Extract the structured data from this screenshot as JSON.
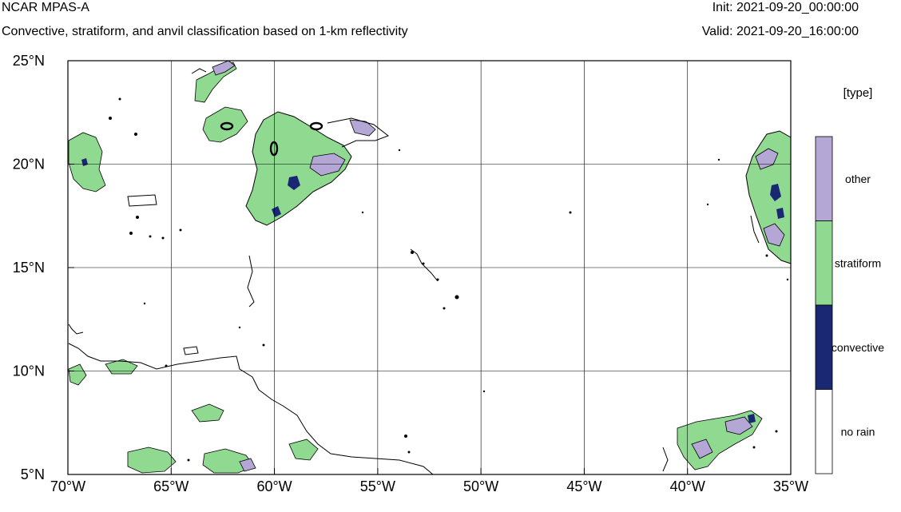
{
  "header": {
    "title": "NCAR MPAS-A",
    "subtitle": "Convective, stratiform, and anvil classification based on 1-km reflectivity",
    "init": "Init: 2021-09-20_00:00:00",
    "valid": "Valid: 2021-09-20_16:00:00"
  },
  "map": {
    "lon_range": [
      -70,
      -35
    ],
    "lat_range": [
      5,
      25
    ],
    "lon_ticks": [
      {
        "value": -70,
        "label": "70°W"
      },
      {
        "value": -65,
        "label": "65°W"
      },
      {
        "value": -60,
        "label": "60°W"
      },
      {
        "value": -55,
        "label": "55°W"
      },
      {
        "value": -50,
        "label": "50°W"
      },
      {
        "value": -45,
        "label": "45°W"
      },
      {
        "value": -40,
        "label": "40°W"
      },
      {
        "value": -35,
        "label": "35°W"
      }
    ],
    "lat_ticks": [
      {
        "value": 25,
        "label": "25°N"
      },
      {
        "value": 20,
        "label": "20°N"
      },
      {
        "value": 15,
        "label": "15°N"
      },
      {
        "value": 10,
        "label": "10°N"
      },
      {
        "value": 5,
        "label": "5°N"
      }
    ],
    "gridlines": true
  },
  "legend": {
    "title": "[type]",
    "items": [
      {
        "label": "other",
        "color": "#b4a7d6"
      },
      {
        "label": "stratiform",
        "color": "#8fd990"
      },
      {
        "label": "convective",
        "color": "#1a2874"
      },
      {
        "label": "no rain",
        "color": "#ffffff"
      }
    ]
  },
  "colors": {
    "other": "#b4a7d6",
    "stratiform": "#8fd990",
    "convective": "#1a2874",
    "no_rain": "#ffffff"
  }
}
